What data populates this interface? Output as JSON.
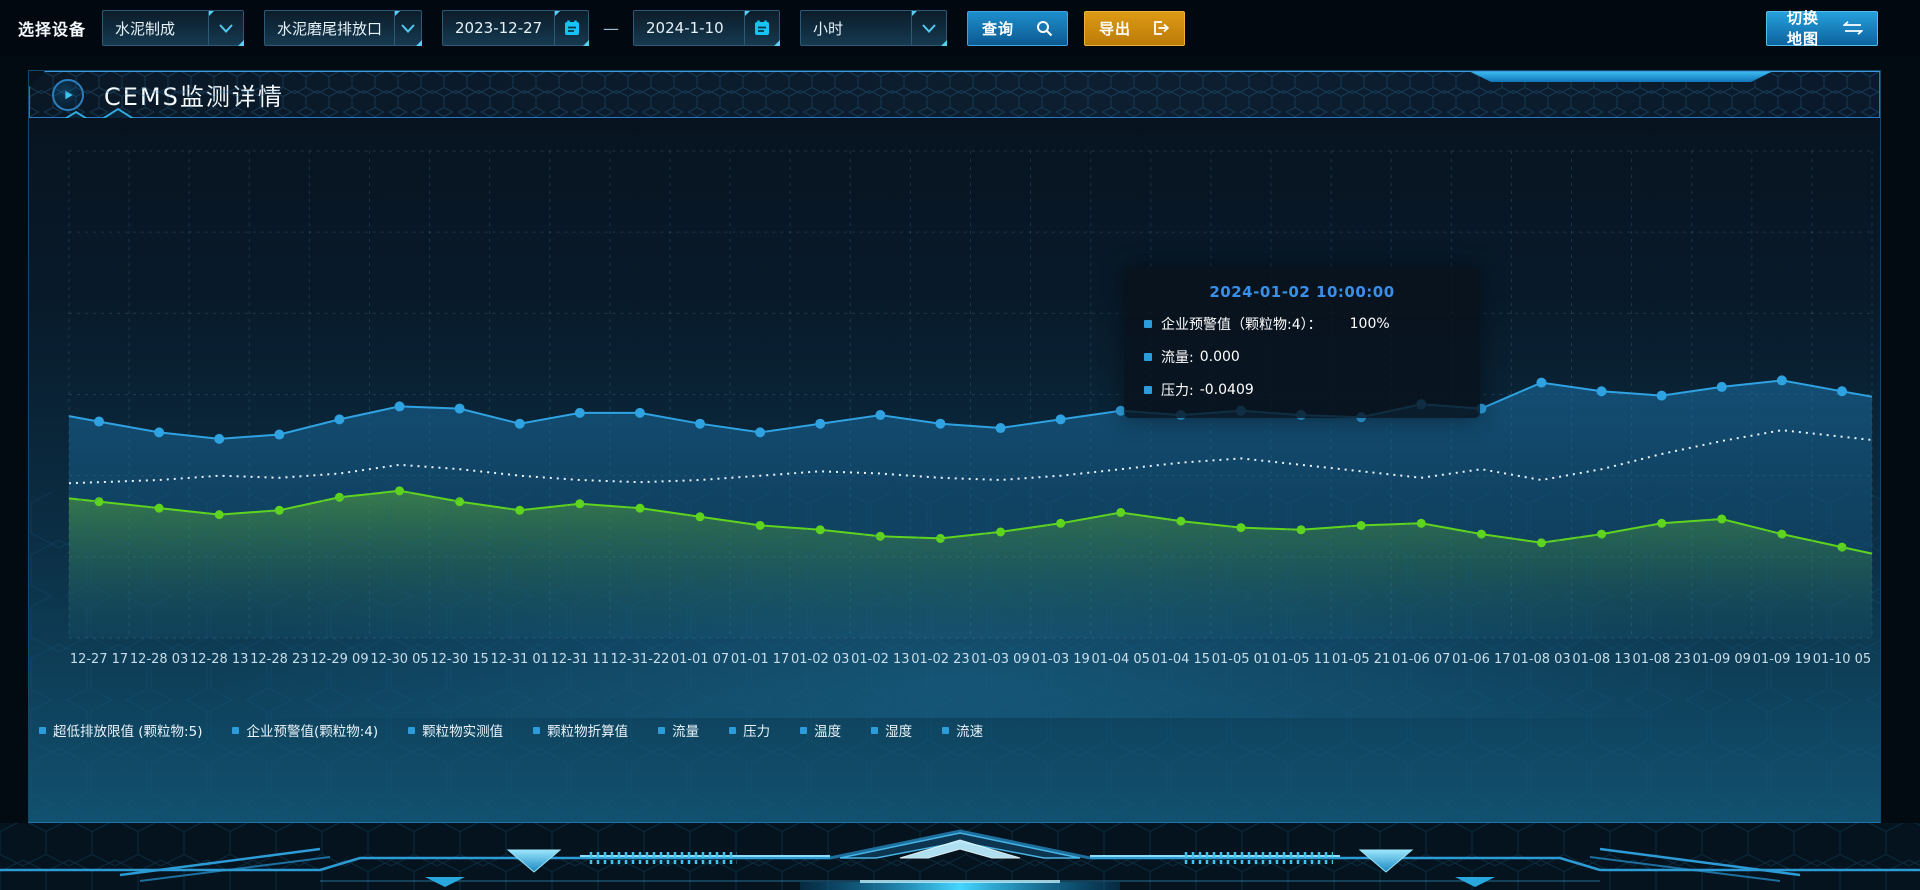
{
  "toolbar": {
    "device_label": "选择设备",
    "device_value": "水泥制成",
    "outlet_value": "水泥磨尾排放口",
    "date_start": "2023-12-27",
    "date_separator": "—",
    "date_end": "2024-1-10",
    "interval_value": "小时",
    "query_label": "查询",
    "export_label": "导出",
    "switch_map_label": "切换地图"
  },
  "panel": {
    "title": "CEMS监测详情"
  },
  "tooltip": {
    "title": "2024-01-02 10:00:00",
    "rows": [
      {
        "label": "企业预警值（颗粒物:4）：",
        "value": "100%"
      },
      {
        "label": "流量:",
        "value": "0.000"
      },
      {
        "label": "压力:",
        "value": "-0.0409"
      }
    ]
  },
  "colors": {
    "accent_blue": "#2D9CDB",
    "series_blue": "#2fa2e2",
    "series_green": "#5fd41f",
    "series_white": "#e8f4fa",
    "tooltip_title": "#3a8fe8",
    "export_orange": "#d2910f",
    "grid": "rgba(140,190,220,0.18)"
  },
  "chart_data": {
    "type": "line",
    "title": "CEMS监测详情",
    "xlabel": "",
    "ylabel": "",
    "ylim": [
      0,
      225
    ],
    "grid": "dashed",
    "legend_position": "bottom",
    "x": [
      "12-27 17",
      "12-28 03",
      "12-28 13",
      "12-28 23",
      "12-29 09",
      "12-30 05",
      "12-30 15",
      "12-31 01",
      "12-31 11",
      "12-31-22",
      "01-01 07",
      "01-01 17",
      "01-02 03",
      "01-02 13",
      "01-02 23",
      "01-03 09",
      "01-03 19",
      "01-04 05",
      "01-04 15",
      "01-05 01",
      "01-05 11",
      "01-05 21",
      "01-06 07",
      "01-06 17",
      "01-08 03",
      "01-08 13",
      "01-08 23",
      "01-09 09",
      "01-09 19",
      "01-10 05"
    ],
    "legend": [
      "超低排放限值 (颗粒物:5)",
      "企业预警值(颗粒物:4)",
      "颗粒物实测值",
      "颗粒物折算值",
      "流量",
      "压力",
      "温度",
      "湿度",
      "流速"
    ],
    "series": [
      {
        "name": "超低排放限值 (颗粒物:5)",
        "color": "#e8f4fa",
        "line": "dotted",
        "markers": false,
        "area": false,
        "values": [
          72,
          73,
          75,
          74,
          76,
          80,
          78,
          75,
          73,
          72,
          73,
          75,
          77,
          76,
          74,
          73,
          75,
          78,
          81,
          83,
          80,
          77,
          74,
          78,
          73,
          78,
          85,
          91,
          96,
          93
        ]
      },
      {
        "name": "企业预警值(颗粒物:4)",
        "color": "#2fa2e2",
        "line": "solid",
        "markers": true,
        "area": true,
        "values": [
          100,
          95,
          92,
          94,
          101,
          107,
          106,
          99,
          104,
          104,
          99,
          95,
          99,
          103,
          99,
          97,
          101,
          105,
          103,
          105,
          103,
          102,
          108,
          106,
          118,
          114,
          112,
          116,
          119,
          114
        ]
      },
      {
        "name": "颗粒物实测值",
        "color": "#5fd41f",
        "line": "solid",
        "markers": true,
        "area": true,
        "values": [
          63,
          60,
          57,
          59,
          65,
          68,
          63,
          59,
          62,
          60,
          56,
          52,
          50,
          47,
          46,
          49,
          53,
          58,
          54,
          51,
          50,
          52,
          53,
          48,
          44,
          48,
          53,
          55,
          48,
          42
        ]
      },
      {
        "name": "颗粒物折算值",
        "color": "#2D9CDB",
        "line": "none",
        "markers": false,
        "area": false,
        "values": []
      },
      {
        "name": "流量",
        "color": "#2D9CDB",
        "line": "none",
        "markers": false,
        "area": false,
        "values": []
      },
      {
        "name": "压力",
        "color": "#2D9CDB",
        "line": "none",
        "markers": false,
        "area": false,
        "values": []
      },
      {
        "name": "温度",
        "color": "#2D9CDB",
        "line": "none",
        "markers": false,
        "area": false,
        "values": []
      },
      {
        "name": "湿度",
        "color": "#2D9CDB",
        "line": "none",
        "markers": false,
        "area": false,
        "values": []
      },
      {
        "name": "流速",
        "color": "#2D9CDB",
        "line": "none",
        "markers": false,
        "area": false,
        "values": []
      }
    ]
  }
}
